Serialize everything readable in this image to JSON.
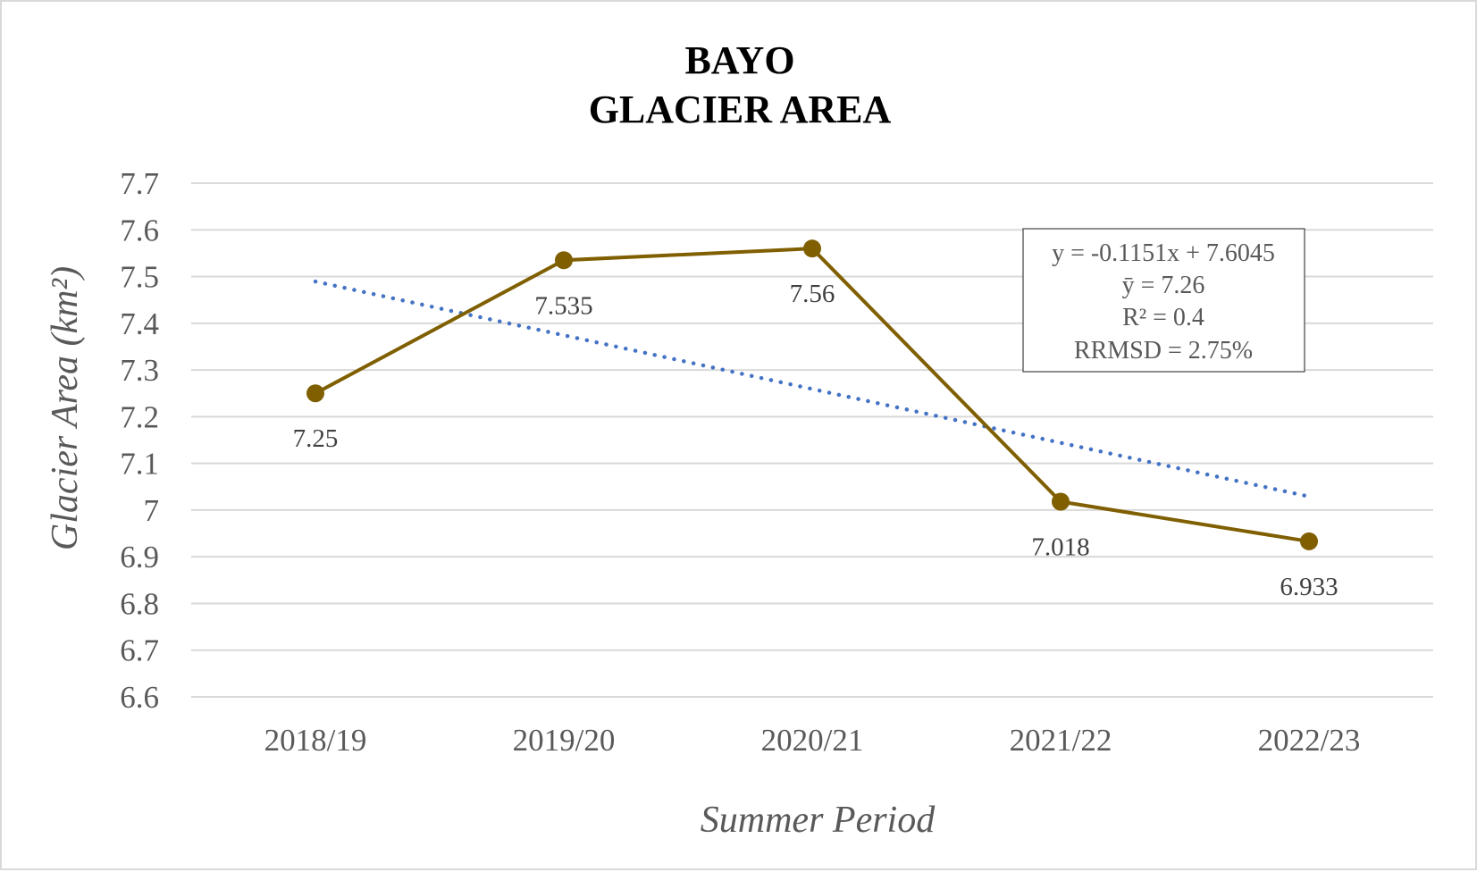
{
  "chart_data": {
    "type": "line",
    "title_lines": [
      "BAYO",
      "GLACIER AREA"
    ],
    "xlabel": "Summer Period",
    "ylabel": "Glacier Area (km²)",
    "categories": [
      "2018/19",
      "2019/20",
      "2020/21",
      "2021/22",
      "2022/23"
    ],
    "series": [
      {
        "values": [
          7.25,
          7.535,
          7.56,
          7.018,
          6.933
        ],
        "labels": [
          "7.25",
          "7.535",
          "7.56",
          "7.018",
          "6.933"
        ],
        "color": "#7f5f00",
        "marker": "circle"
      }
    ],
    "trendline": {
      "type": "linear",
      "slope": -0.1151,
      "intercept": 7.6045,
      "color": "#4472c4",
      "style": "dotted"
    },
    "stats_box": [
      "y = -0.1151x + 7.6045",
      "ȳ = 7.26",
      "R² = 0.4",
      "RRMSD = 2.75%"
    ],
    "ylim": [
      6.6,
      7.7
    ],
    "y_ticks": [
      "6.6",
      "6.7",
      "6.8",
      "6.9",
      "7",
      "7.1",
      "7.2",
      "7.3",
      "7.4",
      "7.5",
      "7.6",
      "7.7"
    ],
    "grid": true,
    "legend": "none",
    "colors": {
      "gridline": "#d9d9d9",
      "tick_text": "#595959",
      "frame": "#d9d9d9"
    }
  }
}
